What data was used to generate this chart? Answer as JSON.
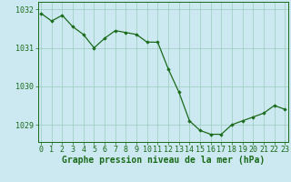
{
  "x": [
    0,
    1,
    2,
    3,
    4,
    5,
    6,
    7,
    8,
    9,
    10,
    11,
    12,
    13,
    14,
    15,
    16,
    17,
    18,
    19,
    20,
    21,
    22,
    23
  ],
  "y": [
    1031.9,
    1031.7,
    1031.85,
    1031.55,
    1031.35,
    1031.0,
    1031.25,
    1031.45,
    1031.4,
    1031.35,
    1031.15,
    1031.15,
    1030.45,
    1029.85,
    1029.1,
    1028.85,
    1028.75,
    1028.75,
    1029.0,
    1029.1,
    1029.2,
    1029.3,
    1029.5,
    1029.4
  ],
  "line_color": "#1a6b1a",
  "marker_color": "#1a6b1a",
  "bg_color": "#cce8f0",
  "grid_color": "#99ccbb",
  "xlabel": "Graphe pression niveau de la mer (hPa)",
  "yticks": [
    1029,
    1030,
    1031,
    1032
  ],
  "xticks": [
    0,
    1,
    2,
    3,
    4,
    5,
    6,
    7,
    8,
    9,
    10,
    11,
    12,
    13,
    14,
    15,
    16,
    17,
    18,
    19,
    20,
    21,
    22,
    23
  ],
  "ylim": [
    1028.55,
    1032.2
  ],
  "xlim": [
    -0.3,
    23.3
  ],
  "xlabel_fontsize": 7.0,
  "tick_fontsize": 6.0
}
